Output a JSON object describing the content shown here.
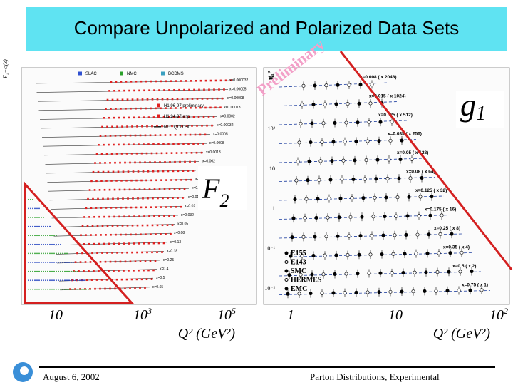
{
  "slide": {
    "title": "Compare Unpolarized and Polarized Data Sets",
    "left_plot": {
      "y_axis_label": "F₂+cᵢ(x)",
      "legend": [
        "SLAC",
        "NMC",
        "BCDMS",
        "H1 96-97 preliminary",
        "H1 94-97 e⁺p",
        "NLO QCD Fit"
      ],
      "x_bins": [
        "x=0.000032",
        "x=0.00005",
        "x=0.00008",
        "x=0.00013",
        "x=0.0002",
        "x=0.00032",
        "x=0.0005",
        "x=0.0008",
        "x=0.0013",
        "x=0.002",
        "x=0.0032",
        "x=0.005",
        "x=0.008",
        "x=0.013",
        "x=0.02",
        "x=0.032",
        "x=0.05",
        "x=0.08",
        "x=0.13",
        "x=0.18",
        "x=0.25",
        "x=0.4",
        "x=0.5",
        "x=0.65"
      ],
      "label": "F",
      "label_sub": "2",
      "x_ticks": [
        {
          "base": "10",
          "exp": ""
        },
        {
          "base": "10",
          "exp": "3"
        },
        {
          "base": "10",
          "exp": "5"
        }
      ],
      "x_axis_label": "Q² (GeV²)"
    },
    "right_plot": {
      "y_axis_label": "g₁ᵖ",
      "watermark": "Preliminary",
      "label": "g",
      "label_sub": "1",
      "y_ticks": [
        "10²",
        "10",
        "1",
        "10⁻¹",
        "10⁻²"
      ],
      "x_bins": [
        "x=0.008 ( x 2048)",
        "x=0.015 ( x 1024)",
        "x=0.025 ( x 512)",
        "x=0.035 ( x 256)",
        "x=0.05 ( x 128)",
        "x=0.08 ( x 64)",
        "x=0.125 ( x 32)",
        "x=0.175 ( x 16)",
        "x=0.25 ( x 8)",
        "x=0.35 ( x 4)",
        "x=0.5 ( x 2)",
        "x=0.75 ( x 1)"
      ],
      "legend": [
        "E155",
        "E143",
        "SMC",
        "HERMES",
        "EMC"
      ],
      "x_ticks": [
        {
          "base": "1",
          "exp": ""
        },
        {
          "base": "10",
          "exp": ""
        },
        {
          "base": "10",
          "exp": "2"
        }
      ],
      "x_axis_label": "Q² (GeV²)"
    },
    "footer": {
      "date": "August  6, 2002",
      "text": "Parton Distributions, Experimental"
    }
  }
}
